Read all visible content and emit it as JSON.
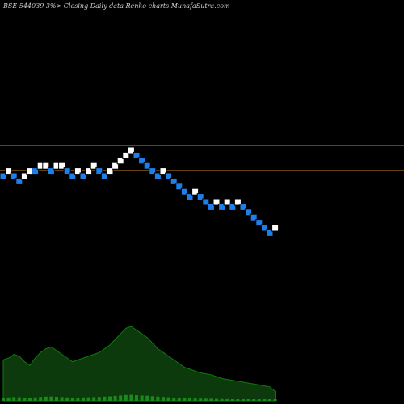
{
  "header": {
    "title": "BSE 544039 3%>   Closing Daily data  Renko  charts MunafaSutra.com"
  },
  "chart_data": {
    "type": "renko",
    "title": "BSE 544039 3%>   Closing Daily data  Renko  charts MunafaSutra.com",
    "box_size_percent": 3,
    "reference_lines": [
      {
        "name": "upper",
        "color": "#c8821e",
        "y_level": 4.6
      },
      {
        "name": "lower",
        "color": "#c8821e",
        "y_level": 2.6
      }
    ],
    "bricks": [
      {
        "level": 0,
        "dir": "down"
      },
      {
        "level": 1,
        "dir": "up"
      },
      {
        "level": 0,
        "dir": "down"
      },
      {
        "level": -1,
        "dir": "down"
      },
      {
        "level": 0,
        "dir": "up"
      },
      {
        "level": 1,
        "dir": "up"
      },
      {
        "level": 1,
        "dir": "down"
      },
      {
        "level": 2,
        "dir": "up"
      },
      {
        "level": 2,
        "dir": "up"
      },
      {
        "level": 1,
        "dir": "down"
      },
      {
        "level": 2,
        "dir": "up"
      },
      {
        "level": 2,
        "dir": "up"
      },
      {
        "level": 1,
        "dir": "down"
      },
      {
        "level": 0,
        "dir": "down"
      },
      {
        "level": 1,
        "dir": "up"
      },
      {
        "level": 0,
        "dir": "down"
      },
      {
        "level": 1,
        "dir": "up"
      },
      {
        "level": 2,
        "dir": "up"
      },
      {
        "level": 1,
        "dir": "down"
      },
      {
        "level": 0,
        "dir": "down"
      },
      {
        "level": 1,
        "dir": "up"
      },
      {
        "level": 2,
        "dir": "up"
      },
      {
        "level": 3,
        "dir": "up"
      },
      {
        "level": 4,
        "dir": "up"
      },
      {
        "level": 5,
        "dir": "up"
      },
      {
        "level": 4,
        "dir": "down"
      },
      {
        "level": 3,
        "dir": "down"
      },
      {
        "level": 2,
        "dir": "down"
      },
      {
        "level": 1,
        "dir": "down"
      },
      {
        "level": 0,
        "dir": "down"
      },
      {
        "level": 1,
        "dir": "up"
      },
      {
        "level": 0,
        "dir": "down"
      },
      {
        "level": -1,
        "dir": "down"
      },
      {
        "level": -2,
        "dir": "down"
      },
      {
        "level": -3,
        "dir": "down"
      },
      {
        "level": -4,
        "dir": "down"
      },
      {
        "level": -3,
        "dir": "up"
      },
      {
        "level": -4,
        "dir": "down"
      },
      {
        "level": -5,
        "dir": "down"
      },
      {
        "level": -6,
        "dir": "down"
      },
      {
        "level": -5,
        "dir": "up"
      },
      {
        "level": -6,
        "dir": "down"
      },
      {
        "level": -5,
        "dir": "up"
      },
      {
        "level": -6,
        "dir": "down"
      },
      {
        "level": -5,
        "dir": "up"
      },
      {
        "level": -6,
        "dir": "down"
      },
      {
        "level": -7,
        "dir": "down"
      },
      {
        "level": -8,
        "dir": "down"
      },
      {
        "level": -9,
        "dir": "down"
      },
      {
        "level": -10,
        "dir": "down"
      },
      {
        "level": -11,
        "dir": "down"
      },
      {
        "level": -10,
        "dir": "up"
      }
    ],
    "volume": {
      "values": [
        44,
        46,
        50,
        48,
        42,
        38,
        46,
        52,
        56,
        58,
        54,
        50,
        46,
        42,
        44,
        46,
        48,
        50,
        52,
        56,
        60,
        66,
        72,
        78,
        80,
        76,
        72,
        68,
        62,
        56,
        52,
        48,
        44,
        40,
        36,
        34,
        32,
        30,
        29,
        28,
        26,
        24,
        23,
        22,
        21,
        20,
        19,
        18,
        17,
        16,
        15,
        10
      ]
    },
    "colors": {
      "up": "#ffffff",
      "down": "#1f7fe8",
      "brick_border": "#000000",
      "reference_line": "#c8821e",
      "volume_fill": "#0d3a0d",
      "volume_line": "#0f7a0f",
      "label": "#b8b8b8"
    }
  }
}
